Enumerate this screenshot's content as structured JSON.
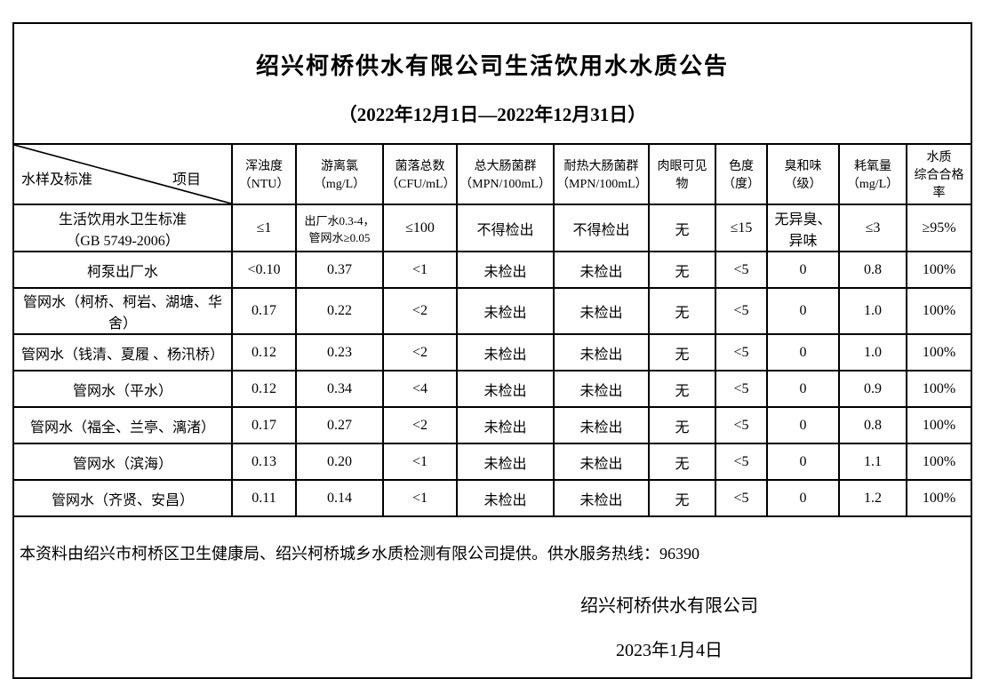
{
  "title": "绍兴柯桥供水有限公司生活饮用水水质公告",
  "subtitle": "（2022年12月1日—2022年12月31日）",
  "header": {
    "corner_left": "水样及标准",
    "corner_right": "项目",
    "columns": [
      "浑浊度\n（NTU）",
      "游离氯（mg/L）",
      "菌落总数\n（CFU/mL）",
      "总大肠菌群\n（MPN/100mL）",
      "耐热大肠菌群\n（MPN/100mL）",
      "肉眼可见物",
      "色度\n（度）",
      "臭和味\n（级）",
      "耗氧量\n（mg/L）",
      "水质\n综合合格率"
    ]
  },
  "rows": [
    {
      "name": "生活饮用水卫生标准\n（GB 5749-2006）",
      "values": [
        "≤1",
        "出厂水0.3-4，\n管网水≥0.05",
        "≤100",
        "不得检出",
        "不得检出",
        "无",
        "≤15",
        "无异臭、\n异味",
        "≤3",
        "≥95%"
      ]
    },
    {
      "name": "柯泵出厂水",
      "values": [
        "<0.10",
        "0.37",
        "<1",
        "未检出",
        "未检出",
        "无",
        "<5",
        "0",
        "0.8",
        "100%"
      ]
    },
    {
      "name": "管网水（柯桥、柯岩、湖塘、华舍）",
      "values": [
        "0.17",
        "0.22",
        "<2",
        "未检出",
        "未检出",
        "无",
        "<5",
        "0",
        "1.0",
        "100%"
      ]
    },
    {
      "name": "管网水（钱清、夏履 、杨汛桥）",
      "values": [
        "0.12",
        "0.23",
        "<2",
        "未检出",
        "未检出",
        "无",
        "<5",
        "0",
        "1.0",
        "100%"
      ]
    },
    {
      "name": "管网水（平水）",
      "values": [
        "0.12",
        "0.34",
        "<4",
        "未检出",
        "未检出",
        "无",
        "<5",
        "0",
        "0.9",
        "100%"
      ]
    },
    {
      "name": "管网水（福全、兰亭、漓渚）",
      "values": [
        "0.17",
        "0.27",
        "<2",
        "未检出",
        "未检出",
        "无",
        "<5",
        "0",
        "0.8",
        "100%"
      ]
    },
    {
      "name": "管网水（滨海）",
      "values": [
        "0.13",
        "0.20",
        "<1",
        "未检出",
        "未检出",
        "无",
        "<5",
        "0",
        "1.1",
        "100%"
      ]
    },
    {
      "name": "管网水（齐贤、安昌）",
      "values": [
        "0.11",
        "0.14",
        "<1",
        "未检出",
        "未检出",
        "无",
        "<5",
        "0",
        "1.2",
        "100%"
      ]
    }
  ],
  "footer": {
    "note": "本资料由绍兴市柯桥区卫生健康局、绍兴柯桥城乡水质检测有限公司提供。供水服务热线：96390",
    "company": "绍兴柯桥供水有限公司",
    "date": "2023年1月4日"
  }
}
